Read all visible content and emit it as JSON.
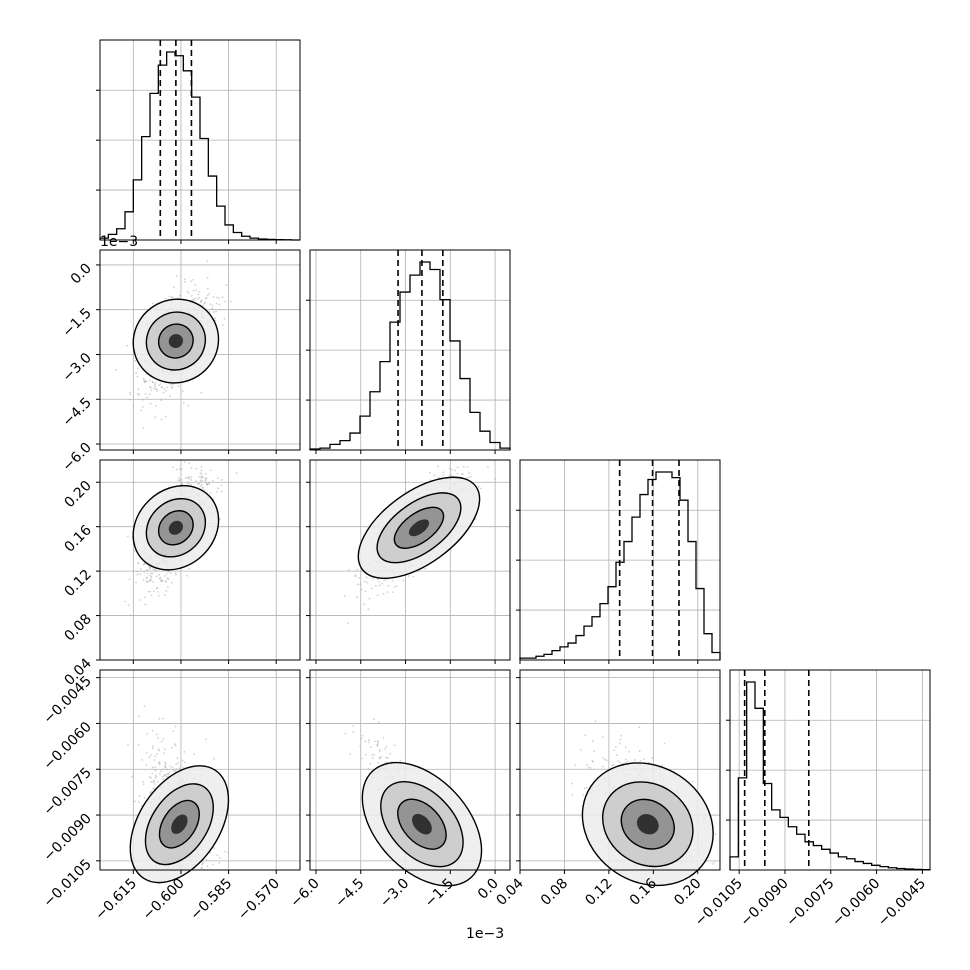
{
  "chart_data": {
    "type": "corner",
    "description_of_layout": "lower-triangular 4x4 grid of 1D histograms and 2D density panels",
    "grid": true,
    "params": [
      {
        "index": 0,
        "range": [
          -0.6255,
          -0.5625
        ],
        "ticks": [
          "−0.615",
          "−0.600",
          "−0.585",
          "−0.570"
        ],
        "tick_values": [
          -0.615,
          -0.6,
          -0.585,
          -0.57
        ],
        "quantiles": [
          -0.6065,
          -0.6016,
          -0.5967
        ],
        "hist_bins": 24,
        "hist_heights": [
          0.01,
          0.03,
          0.06,
          0.15,
          0.32,
          0.55,
          0.78,
          0.93,
          1.0,
          0.98,
          0.9,
          0.76,
          0.54,
          0.34,
          0.18,
          0.08,
          0.04,
          0.02,
          0.01,
          0.005,
          0.003,
          0.002,
          0.001,
          0.0
        ]
      },
      {
        "index": 1,
        "range": [
          -6.2,
          0.5
        ],
        "ticks": [
          "−6.0",
          "−4.5",
          "−3.0",
          "−1.5",
          "0.0"
        ],
        "tick_values": [
          -6.0,
          -4.5,
          -3.0,
          -1.5,
          0.0
        ],
        "offset_label": "1e−3",
        "quantiles": [
          -3.25,
          -2.45,
          -1.75
        ],
        "hist_bins": 20,
        "hist_heights": [
          0.005,
          0.01,
          0.03,
          0.05,
          0.09,
          0.18,
          0.31,
          0.47,
          0.68,
          0.84,
          0.93,
          1.0,
          0.96,
          0.8,
          0.58,
          0.38,
          0.2,
          0.1,
          0.04,
          0.01
        ]
      },
      {
        "index": 2,
        "range": [
          0.04,
          0.22
        ],
        "ticks": [
          "0.04",
          "0.08",
          "0.12",
          "0.16",
          "0.20"
        ],
        "tick_values": [
          0.04,
          0.08,
          0.12,
          0.16,
          0.2
        ],
        "quantiles": [
          0.1297,
          0.1593,
          0.1831
        ],
        "hist_bins": 25,
        "hist_heights": [
          0.01,
          0.01,
          0.02,
          0.03,
          0.05,
          0.07,
          0.09,
          0.13,
          0.18,
          0.23,
          0.3,
          0.39,
          0.52,
          0.63,
          0.76,
          0.88,
          0.96,
          1.0,
          1.0,
          0.97,
          0.85,
          0.63,
          0.38,
          0.14,
          0.04
        ]
      },
      {
        "index": 3,
        "range": [
          -0.0108,
          -0.00425
        ],
        "ticks": [
          "−0.0105",
          "−0.0090",
          "−0.0075",
          "−0.0060",
          "−0.0045"
        ],
        "tick_values": [
          -0.0105,
          -0.009,
          -0.0075,
          -0.006,
          -0.0045
        ],
        "quantiles": [
          -0.01032,
          -0.00966,
          -0.00822
        ],
        "hist_bins": 24,
        "hist_heights": [
          0.07,
          0.49,
          1.0,
          0.86,
          0.46,
          0.32,
          0.28,
          0.23,
          0.19,
          0.15,
          0.13,
          0.11,
          0.09,
          0.07,
          0.06,
          0.045,
          0.035,
          0.025,
          0.018,
          0.012,
          0.008,
          0.005,
          0.003,
          0.002
        ]
      }
    ],
    "pairs": [
      {
        "xi": 0,
        "yi": 1,
        "mean": [
          -0.6016,
          -2.55
        ],
        "sd": [
          0.0054,
          0.85
        ],
        "rho": 0.5
      },
      {
        "xi": 0,
        "yi": 2,
        "mean": [
          -0.6016,
          0.159
        ],
        "sd": [
          0.0054,
          0.024
        ],
        "rho": 0.7
      },
      {
        "xi": 1,
        "yi": 2,
        "mean": [
          -2.55,
          0.159
        ],
        "sd": [
          0.85,
          0.024
        ],
        "rho": 0.8
      },
      {
        "xi": 0,
        "yi": 3,
        "mean": [
          -0.6005,
          -0.0093
        ],
        "sd": [
          0.0053,
          0.0012
        ],
        "rho": -0.35
      },
      {
        "xi": 1,
        "yi": 3,
        "mean": [
          -2.45,
          -0.0093
        ],
        "sd": [
          0.85,
          0.0012
        ],
        "rho": -0.9
      },
      {
        "xi": 2,
        "yi": 3,
        "mean": [
          0.155,
          -0.0093
        ],
        "sd": [
          0.024,
          0.0012
        ],
        "rho": -0.55
      }
    ]
  }
}
